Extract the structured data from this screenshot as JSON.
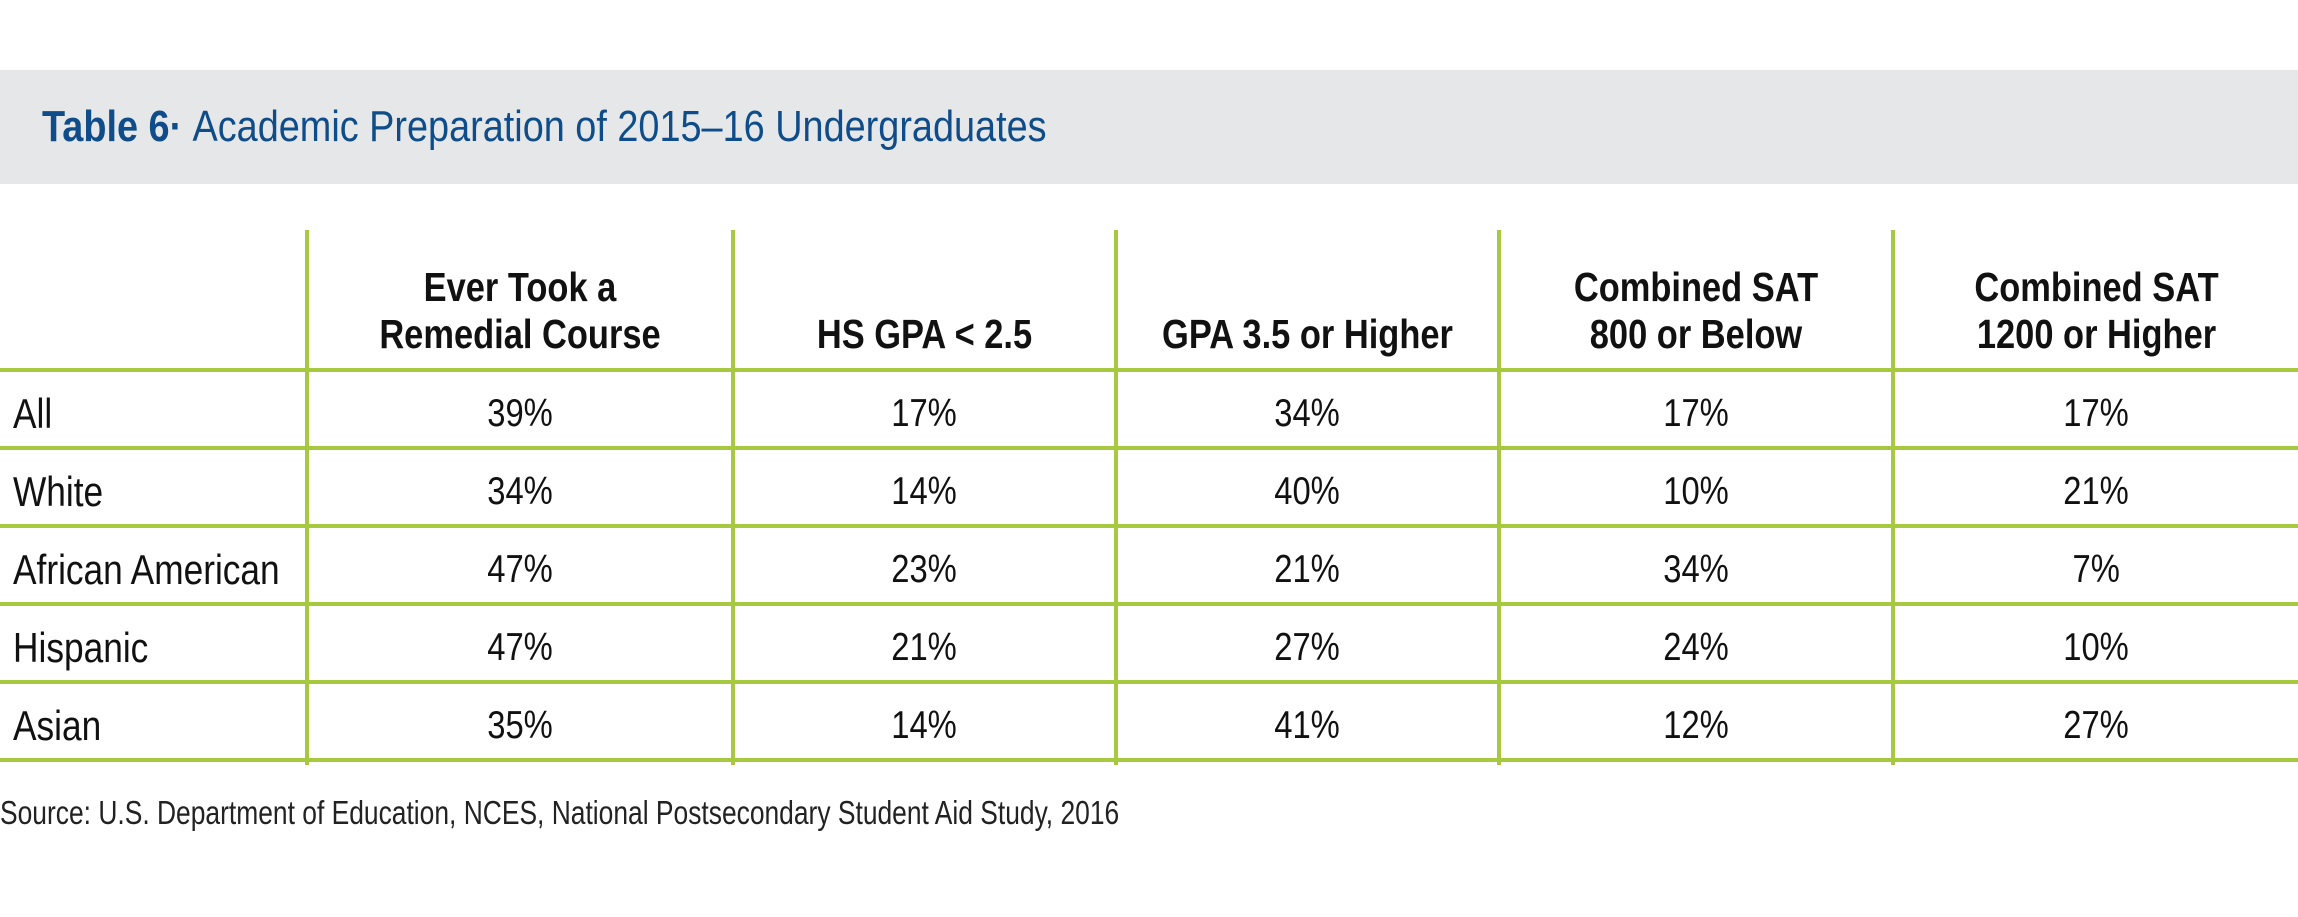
{
  "title": {
    "label": "Table 6",
    "separator": "·",
    "text": "Academic Preparation of 2015–16 Undergraduates"
  },
  "columns": [
    [
      "Ever Took a",
      "Remedial Course"
    ],
    [
      "",
      "HS GPA < 2.5"
    ],
    [
      "",
      "GPA 3.5 or Higher"
    ],
    [
      "Combined SAT",
      "800 or Below"
    ],
    [
      "Combined SAT",
      "1200 or Higher"
    ]
  ],
  "rows": [
    {
      "label": "All",
      "values": [
        "39%",
        "17%",
        "34%",
        "17%",
        "17%"
      ]
    },
    {
      "label": "White",
      "values": [
        "34%",
        "14%",
        "40%",
        "10%",
        "21%"
      ]
    },
    {
      "label": "African American",
      "values": [
        "47%",
        "23%",
        "21%",
        "34%",
        "7%"
      ]
    },
    {
      "label": "Hispanic",
      "values": [
        "47%",
        "21%",
        "27%",
        "24%",
        "10%"
      ]
    },
    {
      "label": "Asian",
      "values": [
        "35%",
        "14%",
        "41%",
        "12%",
        "27%"
      ]
    }
  ],
  "source": "Source: U.S. Department of Education, NCES, National Postsecondary Student Aid Study, 2016",
  "colors": {
    "title": "#0e4c8a",
    "band": "#e6e7e9",
    "rule": "#a6c93f"
  }
}
